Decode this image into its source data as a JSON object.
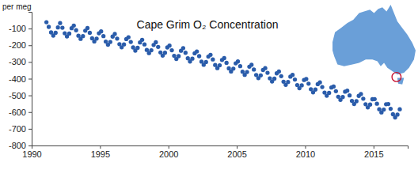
{
  "chart_data": {
    "type": "scatter",
    "title": "Cape Grim O₂ Concentration",
    "ylabel": "per meg",
    "color": "#2a5caa",
    "marker": "circle",
    "xlim": [
      1990,
      2017.5
    ],
    "xticks": [
      1990,
      1995,
      2000,
      2005,
      2010,
      2015
    ],
    "ylim": [
      -800,
      0
    ],
    "yticks": [
      -800,
      -700,
      -600,
      -500,
      -400,
      -300,
      -200,
      -100
    ],
    "x": [
      1991.08,
      1991.25,
      1991.42,
      1991.58,
      1991.75,
      1991.92,
      1992.08,
      1992.25,
      1992.42,
      1992.58,
      1992.75,
      1992.92,
      1993.08,
      1993.25,
      1993.42,
      1993.58,
      1993.75,
      1993.92,
      1994.08,
      1994.25,
      1994.42,
      1994.58,
      1994.75,
      1994.92,
      1995.08,
      1995.25,
      1995.42,
      1995.58,
      1995.75,
      1995.92,
      1996.08,
      1996.25,
      1996.42,
      1996.58,
      1996.75,
      1996.92,
      1997.08,
      1997.25,
      1997.42,
      1997.58,
      1997.75,
      1997.92,
      1998.08,
      1998.25,
      1998.42,
      1998.58,
      1998.75,
      1998.92,
      1999.08,
      1999.25,
      1999.42,
      1999.58,
      1999.75,
      1999.92,
      2000.08,
      2000.25,
      2000.42,
      2000.58,
      2000.75,
      2000.92,
      2001.08,
      2001.25,
      2001.42,
      2001.58,
      2001.75,
      2001.92,
      2002.08,
      2002.25,
      2002.42,
      2002.58,
      2002.75,
      2002.92,
      2003.08,
      2003.25,
      2003.42,
      2003.58,
      2003.75,
      2003.92,
      2004.08,
      2004.25,
      2004.42,
      2004.58,
      2004.75,
      2004.92,
      2005.08,
      2005.25,
      2005.42,
      2005.58,
      2005.75,
      2005.92,
      2006.08,
      2006.25,
      2006.42,
      2006.58,
      2006.75,
      2006.92,
      2007.08,
      2007.25,
      2007.42,
      2007.58,
      2007.75,
      2007.92,
      2008.08,
      2008.25,
      2008.42,
      2008.58,
      2008.75,
      2008.92,
      2009.08,
      2009.25,
      2009.42,
      2009.58,
      2009.75,
      2009.92,
      2010.08,
      2010.25,
      2010.42,
      2010.58,
      2010.75,
      2010.92,
      2011.08,
      2011.25,
      2011.42,
      2011.58,
      2011.75,
      2011.92,
      2012.08,
      2012.25,
      2012.42,
      2012.58,
      2012.75,
      2012.92,
      2013.08,
      2013.25,
      2013.42,
      2013.58,
      2013.75,
      2013.92,
      2014.08,
      2014.25,
      2014.42,
      2014.58,
      2014.75,
      2014.92,
      2015.08,
      2015.25,
      2015.42,
      2015.58,
      2015.75,
      2015.92,
      2016.08,
      2016.25,
      2016.42,
      2016.58,
      2016.75,
      2016.92
    ],
    "values": [
      -62,
      -90,
      -123,
      -142,
      -125,
      -93,
      -67,
      -95,
      -128,
      -147,
      -130,
      -98,
      -82,
      -110,
      -143,
      -162,
      -145,
      -113,
      -97,
      -125,
      -158,
      -177,
      -160,
      -128,
      -117,
      -145,
      -178,
      -197,
      -180,
      -148,
      -132,
      -160,
      -193,
      -212,
      -195,
      -163,
      -152,
      -180,
      -213,
      -232,
      -215,
      -183,
      -167,
      -195,
      -228,
      -247,
      -230,
      -198,
      -182,
      -210,
      -243,
      -262,
      -245,
      -213,
      -202,
      -230,
      -263,
      -282,
      -265,
      -233,
      -217,
      -245,
      -278,
      -297,
      -280,
      -248,
      -237,
      -265,
      -298,
      -317,
      -300,
      -268,
      -257,
      -285,
      -318,
      -337,
      -320,
      -288,
      -277,
      -305,
      -338,
      -357,
      -340,
      -308,
      -297,
      -325,
      -358,
      -377,
      -360,
      -328,
      -317,
      -345,
      -378,
      -397,
      -380,
      -348,
      -337,
      -365,
      -398,
      -417,
      -400,
      -368,
      -357,
      -385,
      -418,
      -437,
      -420,
      -388,
      -377,
      -405,
      -438,
      -457,
      -440,
      -408,
      -402,
      -430,
      -463,
      -482,
      -465,
      -433,
      -422,
      -450,
      -483,
      -502,
      -485,
      -453,
      -447,
      -475,
      -508,
      -527,
      -510,
      -478,
      -472,
      -500,
      -533,
      -552,
      -535,
      -503,
      -492,
      -520,
      -553,
      -572,
      -555,
      -523,
      -522,
      -550,
      -583,
      -602,
      -585,
      -553,
      -552,
      -580,
      -613,
      -632,
      -615,
      -583
    ]
  }
}
